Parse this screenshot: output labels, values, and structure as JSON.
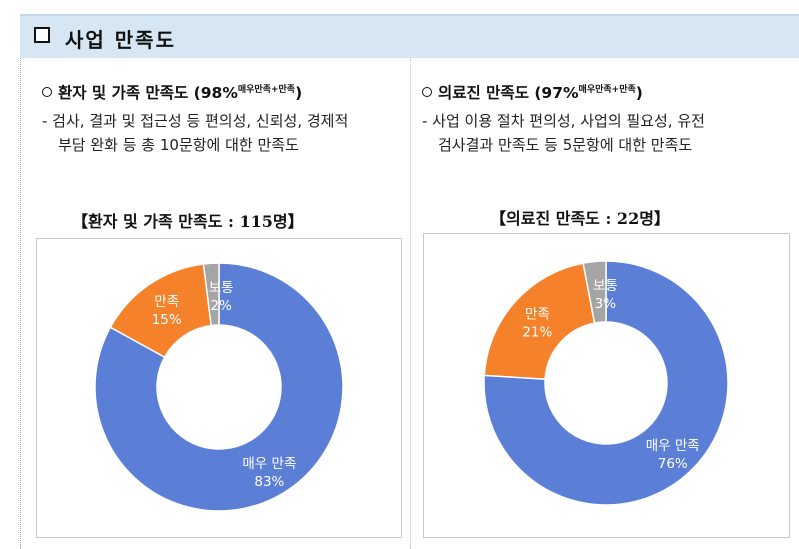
{
  "section": {
    "title": "사업 만족도"
  },
  "left": {
    "heading_main": "환자 및 가족 만족도 (98%",
    "heading_sup": "매우만족+만족",
    "heading_end": ")",
    "desc_line1": "- 검사, 결과 및 접근성 등 편의성, 신뢰성, 경제적",
    "desc_line2": "부담 완화 등 총 10문항에 대한 만족도",
    "chart_title": "【환자 및 가족 만족도 : 115명】"
  },
  "right": {
    "heading_main": "의료진 만족도 (97%",
    "heading_sup": "매우만족+만족",
    "heading_end": ")",
    "desc_line1": "- 사업 이용 절차 편의성, 사업의 필요성, 유전",
    "desc_line2": "검사결과 만족도 등 5문항에 대한 만족도",
    "chart_title": "【의료진 만족도 : 22명】"
  },
  "chart_data": [
    {
      "type": "pie",
      "title": "【환자 및 가족 만족도 : 115명】",
      "categories": [
        "매우 만족",
        "만족",
        "보통"
      ],
      "values": [
        83,
        15,
        2
      ],
      "labels": [
        "83%",
        "15%",
        "2%"
      ],
      "colors": [
        "#5b7fd6",
        "#f5822a",
        "#a5a5a5"
      ]
    },
    {
      "type": "pie",
      "title": "【의료진 만족도 : 22명】",
      "categories": [
        "매우 만족",
        "만족",
        "보통"
      ],
      "values": [
        76,
        21,
        3
      ],
      "labels": [
        "76%",
        "21%",
        "3%"
      ],
      "colors": [
        "#5b7fd6",
        "#f5822a",
        "#a5a5a5"
      ]
    }
  ]
}
